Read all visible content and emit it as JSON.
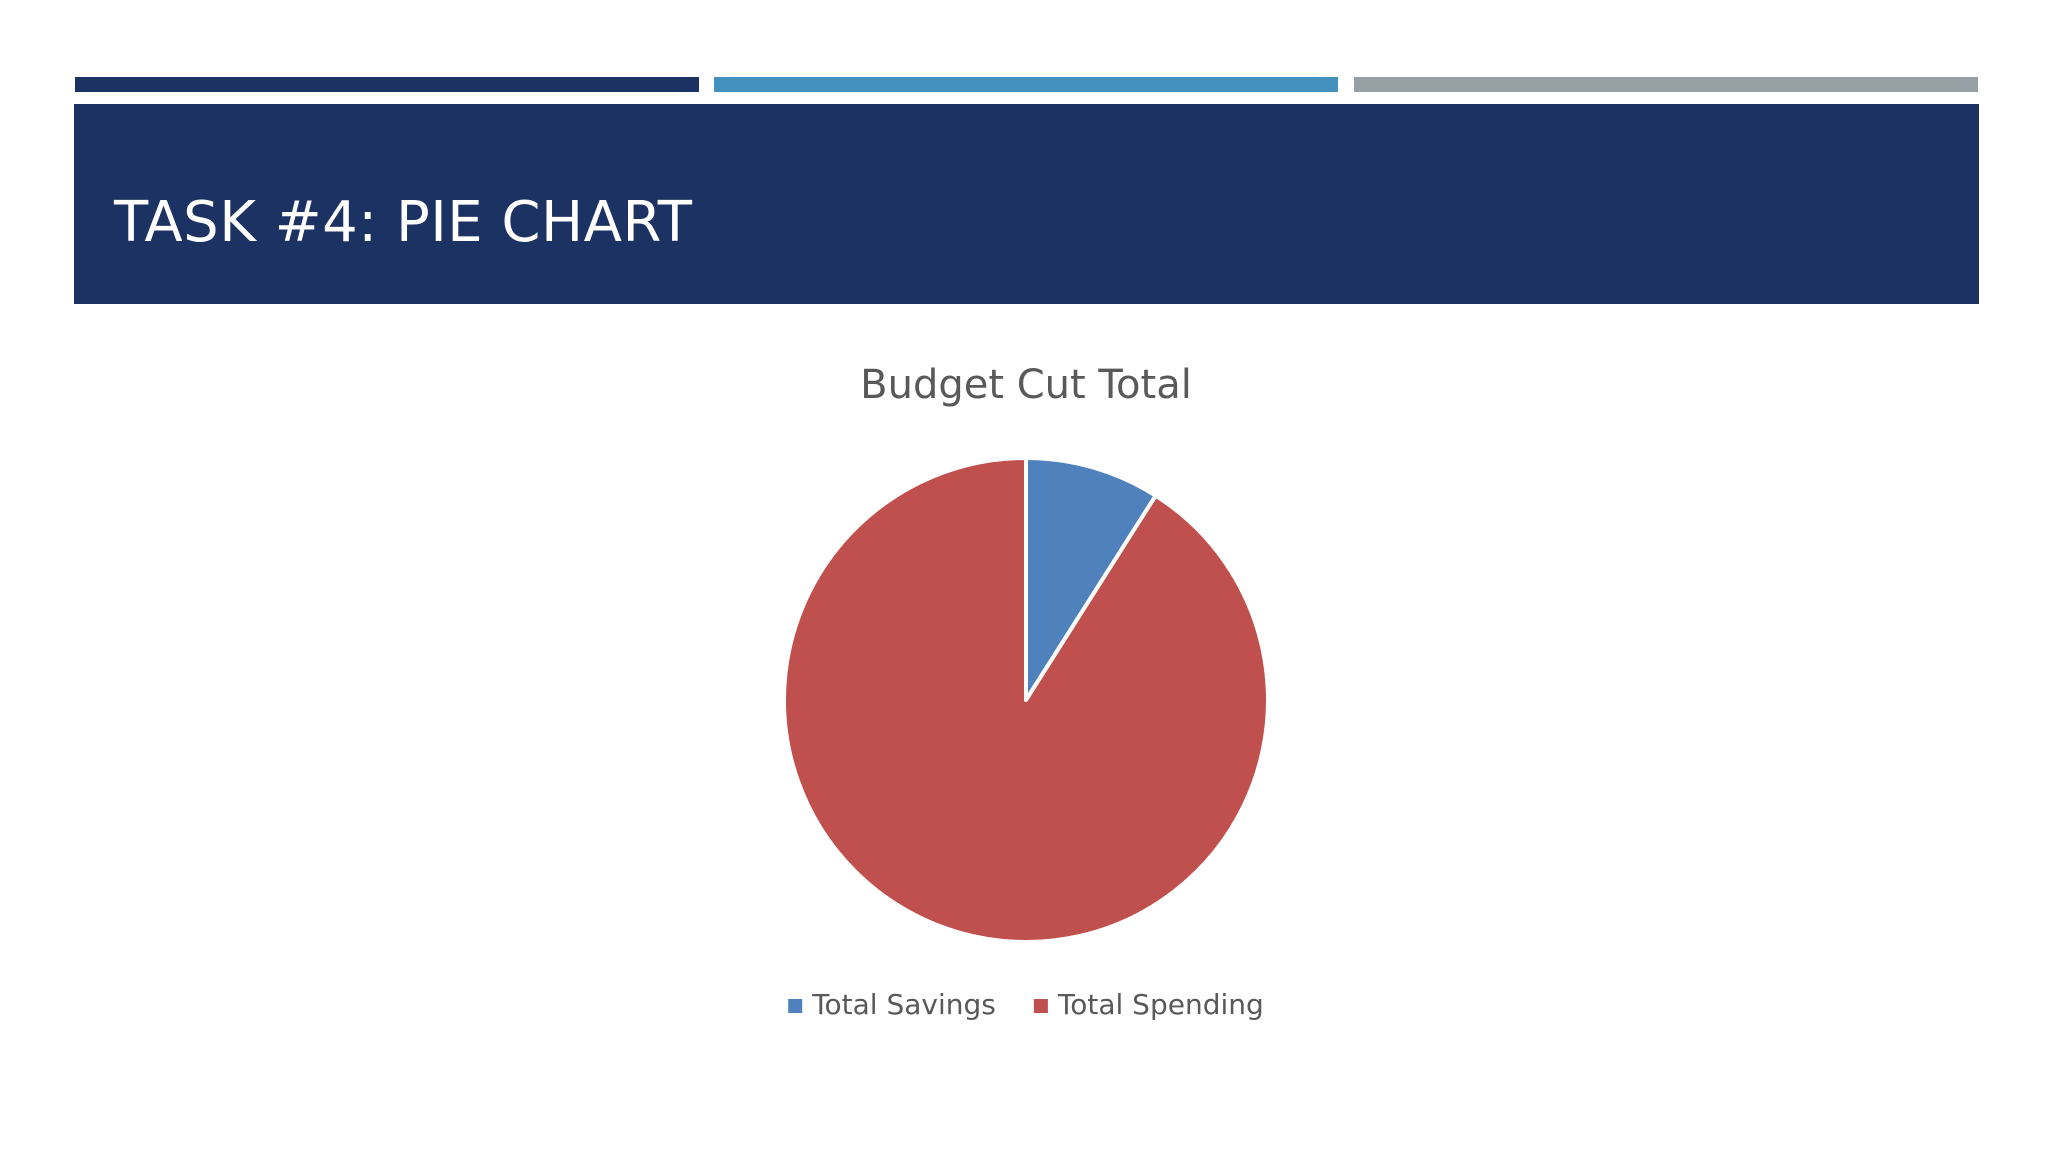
{
  "slide": {
    "title": "TASK #4: PIE CHART"
  },
  "colors": {
    "bar_dark": "#1c3262",
    "bar_blue": "#4491c0",
    "bar_gray": "#97a1a5",
    "title_band": "#1c3262",
    "savings": "#4f81bd",
    "spending": "#c0504d"
  },
  "chart_data": {
    "type": "pie",
    "title": "Budget Cut Total",
    "categories": [
      "Total Savings",
      "Total Spending"
    ],
    "values": [
      9,
      91
    ],
    "colors": [
      "#4f81bd",
      "#c0504d"
    ],
    "start_angle_deg": 0,
    "direction": "clockwise",
    "legend_position": "bottom"
  }
}
